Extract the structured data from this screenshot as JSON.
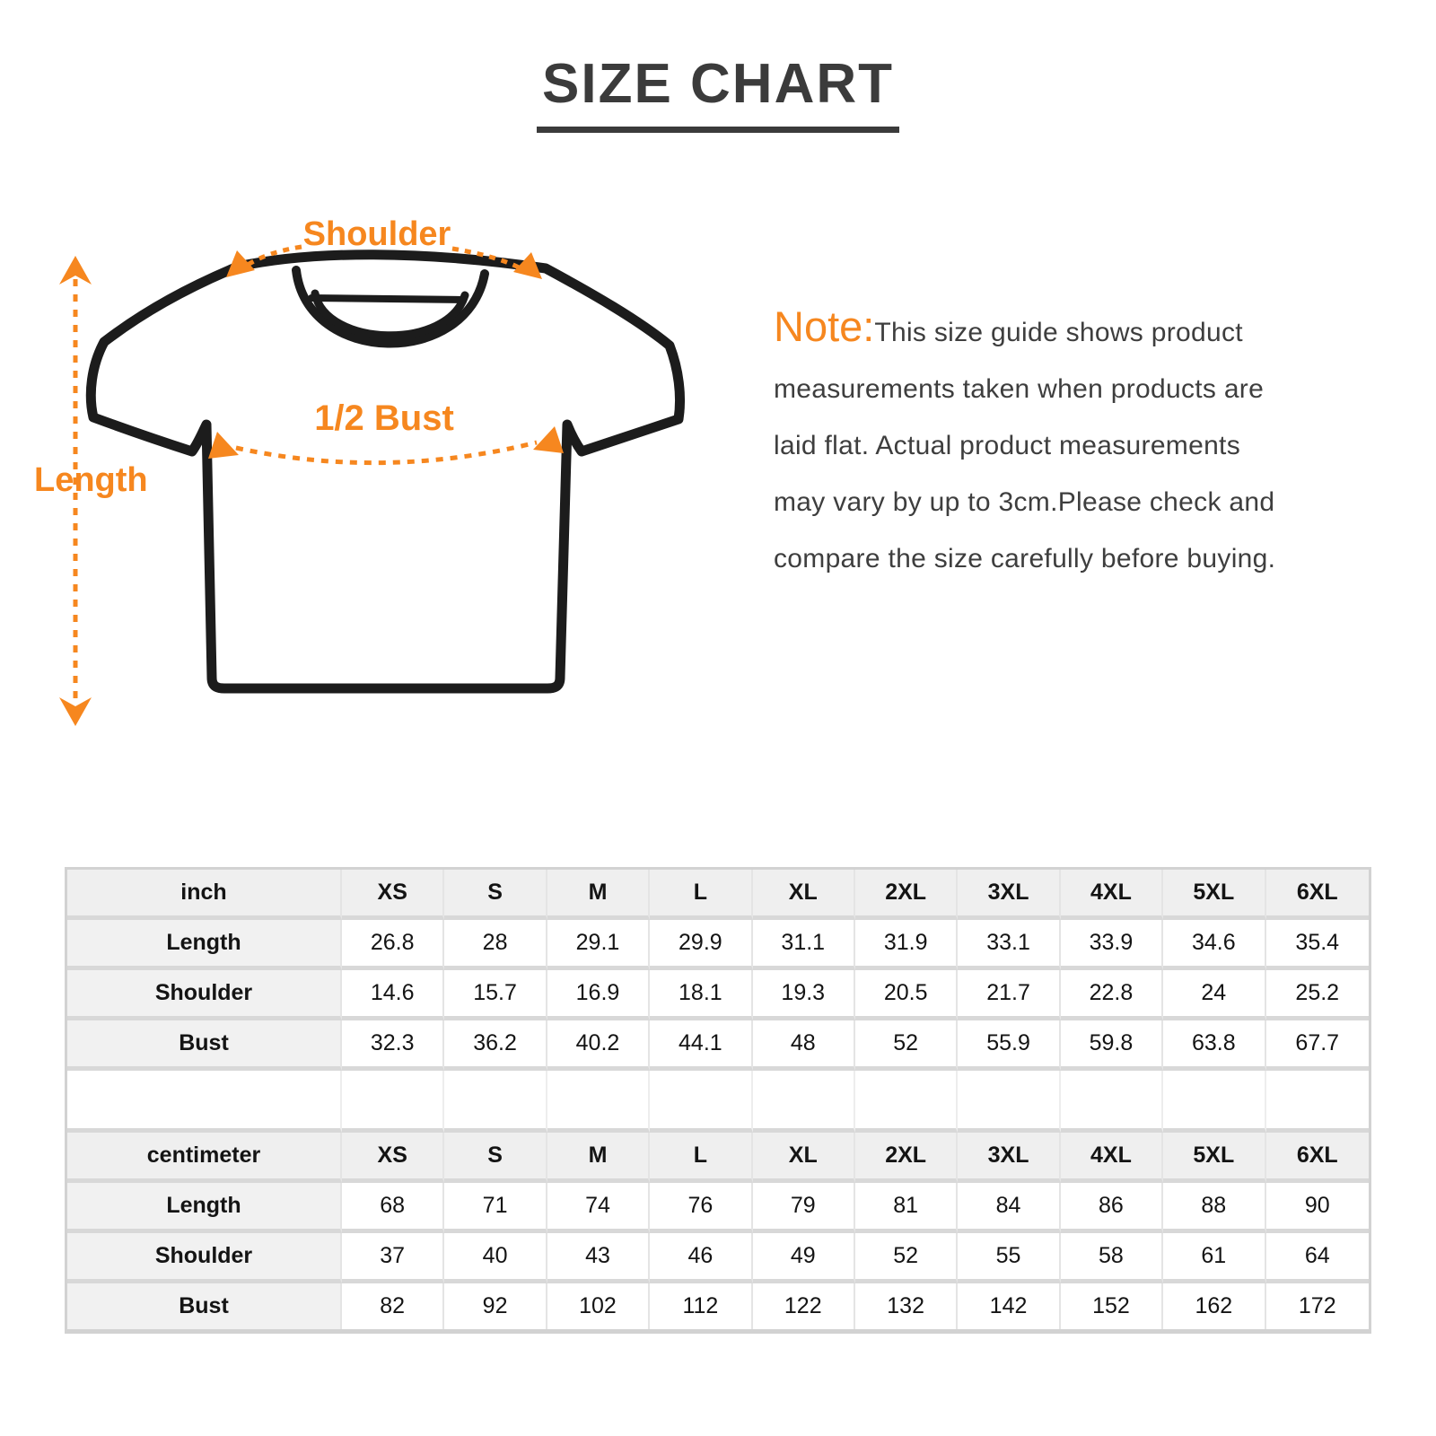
{
  "title": "SIZE CHART",
  "colors": {
    "accent_orange": "#f6871f",
    "outline_black": "#1c1c1c",
    "title_gray": "#3b3b3b",
    "table_header_bg": "#efefef",
    "table_grid": "#d8d8d8"
  },
  "diagram": {
    "shoulder_label": "Shoulder",
    "bust_label": "1/2 Bust",
    "length_label": "Length"
  },
  "note": {
    "prefix": "Note:",
    "text": "This size guide shows product\nmeasurements taken when products are\nlaid flat. Actual product measurements\nmay vary by up to 3cm.Please check and\ncompare the size carefully before buying."
  },
  "table": {
    "sizes": [
      "XS",
      "S",
      "M",
      "L",
      "XL",
      "2XL",
      "3XL",
      "4XL",
      "5XL",
      "6XL"
    ],
    "inch": {
      "unit_label": "inch",
      "rows": [
        {
          "label": "Length",
          "values": [
            "26.8",
            "28",
            "29.1",
            "29.9",
            "31.1",
            "31.9",
            "33.1",
            "33.9",
            "34.6",
            "35.4"
          ]
        },
        {
          "label": "Shoulder",
          "values": [
            "14.6",
            "15.7",
            "16.9",
            "18.1",
            "19.3",
            "20.5",
            "21.7",
            "22.8",
            "24",
            "25.2"
          ]
        },
        {
          "label": "Bust",
          "values": [
            "32.3",
            "36.2",
            "40.2",
            "44.1",
            "48",
            "52",
            "55.9",
            "59.8",
            "63.8",
            "67.7"
          ]
        }
      ]
    },
    "centimeter": {
      "unit_label": "centimeter",
      "rows": [
        {
          "label": "Length",
          "values": [
            "68",
            "71",
            "74",
            "76",
            "79",
            "81",
            "84",
            "86",
            "88",
            "90"
          ]
        },
        {
          "label": "Shoulder",
          "values": [
            "37",
            "40",
            "43",
            "46",
            "49",
            "52",
            "55",
            "58",
            "61",
            "64"
          ]
        },
        {
          "label": "Bust",
          "values": [
            "82",
            "92",
            "102",
            "112",
            "122",
            "132",
            "142",
            "152",
            "162",
            "172"
          ]
        }
      ]
    }
  }
}
